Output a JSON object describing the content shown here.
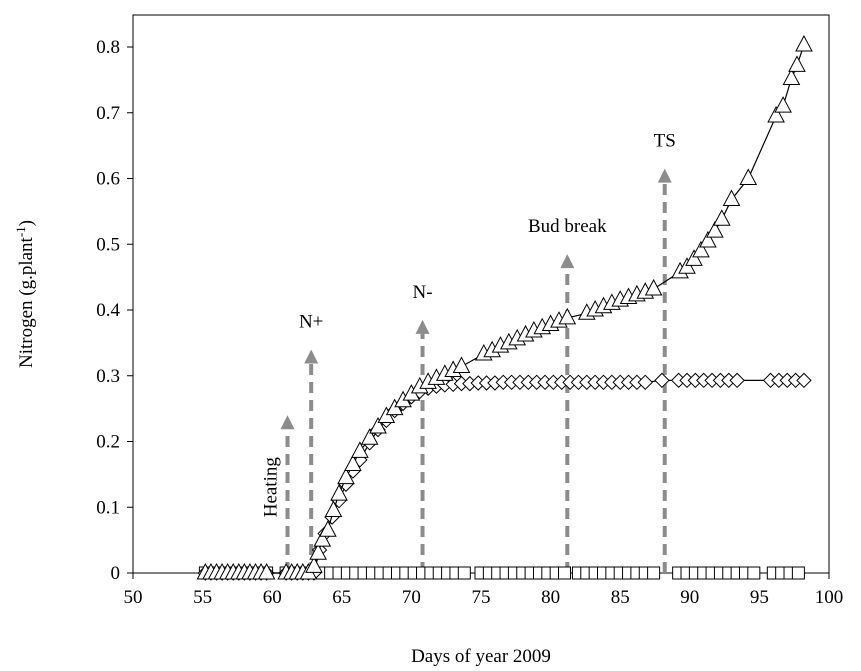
{
  "chart_data": {
    "type": "line",
    "title": "",
    "xlabel": "Days of year 2009",
    "ylabel": "Nitrogen (g.plant",
    "ylabel_superscript": "-1",
    "ylabel_close": ")",
    "xlim": [
      50,
      100
    ],
    "ylim": [
      0,
      0.85
    ],
    "xticks": [
      50,
      55,
      60,
      65,
      70,
      75,
      80,
      85,
      90,
      95,
      100
    ],
    "yticks": [
      0,
      0.1,
      0.2,
      0.3,
      0.4,
      0.5,
      0.6,
      0.7,
      0.8
    ],
    "ytick_labels": [
      "0",
      "0.1",
      "0.2",
      "0.3",
      "0.4",
      "0.5",
      "0.6",
      "0.7",
      "0.8"
    ],
    "grid": false,
    "legend": "none",
    "series": [
      {
        "marker": "triangle",
        "connected": true,
        "points": [
          [
            55.2,
            0
          ],
          [
            55.6,
            0
          ],
          [
            56.0,
            0
          ],
          [
            56.4,
            0
          ],
          [
            56.8,
            0
          ],
          [
            57.2,
            0
          ],
          [
            57.6,
            0
          ],
          [
            58.0,
            0
          ],
          [
            58.4,
            0
          ],
          [
            58.8,
            0
          ],
          [
            59.2,
            0
          ],
          [
            59.6,
            0
          ],
          [
            61.0,
            0
          ],
          [
            61.4,
            0
          ],
          [
            61.8,
            0
          ],
          [
            62.2,
            0
          ],
          [
            62.6,
            0
          ],
          [
            63.0,
            0.01
          ],
          [
            63.3,
            0.03
          ],
          [
            63.6,
            0.05
          ],
          [
            64.0,
            0.065
          ],
          [
            64.4,
            0.095
          ],
          [
            64.8,
            0.12
          ],
          [
            65.3,
            0.145
          ],
          [
            65.8,
            0.165
          ],
          [
            66.3,
            0.185
          ],
          [
            67.0,
            0.205
          ],
          [
            67.6,
            0.222
          ],
          [
            68.2,
            0.238
          ],
          [
            68.8,
            0.25
          ],
          [
            69.4,
            0.262
          ],
          [
            70.0,
            0.272
          ],
          [
            70.6,
            0.283
          ],
          [
            71.2,
            0.29
          ],
          [
            71.8,
            0.296
          ],
          [
            72.4,
            0.302
          ],
          [
            73.0,
            0.308
          ],
          [
            73.6,
            0.314
          ],
          [
            75.2,
            0.333
          ],
          [
            75.8,
            0.338
          ],
          [
            76.4,
            0.345
          ],
          [
            77.0,
            0.35
          ],
          [
            77.6,
            0.356
          ],
          [
            78.2,
            0.362
          ],
          [
            78.8,
            0.368
          ],
          [
            79.4,
            0.373
          ],
          [
            80.0,
            0.378
          ],
          [
            80.6,
            0.383
          ],
          [
            81.2,
            0.388
          ],
          [
            82.6,
            0.395
          ],
          [
            83.2,
            0.4
          ],
          [
            83.8,
            0.405
          ],
          [
            84.4,
            0.41
          ],
          [
            85.0,
            0.415
          ],
          [
            85.6,
            0.419
          ],
          [
            86.2,
            0.423
          ],
          [
            86.8,
            0.427
          ],
          [
            87.4,
            0.432
          ],
          [
            89.3,
            0.458
          ],
          [
            89.8,
            0.465
          ],
          [
            90.3,
            0.477
          ],
          [
            90.8,
            0.49
          ],
          [
            91.3,
            0.505
          ],
          [
            91.8,
            0.52
          ],
          [
            92.3,
            0.538
          ],
          [
            93.0,
            0.568
          ],
          [
            94.2,
            0.6
          ],
          [
            96.2,
            0.695
          ],
          [
            96.7,
            0.71
          ],
          [
            97.3,
            0.752
          ],
          [
            97.7,
            0.772
          ],
          [
            98.2,
            0.803
          ]
        ]
      },
      {
        "marker": "diamond",
        "connected": true,
        "points": [
          [
            55.2,
            0
          ],
          [
            55.6,
            0
          ],
          [
            56.0,
            0
          ],
          [
            56.4,
            0
          ],
          [
            56.8,
            0
          ],
          [
            57.2,
            0
          ],
          [
            57.6,
            0
          ],
          [
            58.0,
            0
          ],
          [
            58.4,
            0
          ],
          [
            58.8,
            0
          ],
          [
            59.2,
            0
          ],
          [
            59.6,
            0
          ],
          [
            61.0,
            0
          ],
          [
            61.4,
            0
          ],
          [
            61.8,
            0
          ],
          [
            62.2,
            0
          ],
          [
            62.6,
            0
          ],
          [
            63.0,
            0
          ],
          [
            63.4,
            0.035
          ],
          [
            63.8,
            0.06
          ],
          [
            64.3,
            0.085
          ],
          [
            64.8,
            0.11
          ],
          [
            65.3,
            0.135
          ],
          [
            65.8,
            0.155
          ],
          [
            66.3,
            0.172
          ],
          [
            67.0,
            0.198
          ],
          [
            67.6,
            0.218
          ],
          [
            68.2,
            0.232
          ],
          [
            68.8,
            0.247
          ],
          [
            69.4,
            0.258
          ],
          [
            70.0,
            0.268
          ],
          [
            70.6,
            0.276
          ],
          [
            71.2,
            0.281
          ],
          [
            71.8,
            0.284
          ],
          [
            72.4,
            0.286
          ],
          [
            73.0,
            0.287
          ],
          [
            73.6,
            0.288
          ],
          [
            74.2,
            0.288
          ],
          [
            74.8,
            0.289
          ],
          [
            75.4,
            0.289
          ],
          [
            76.0,
            0.289
          ],
          [
            76.6,
            0.29
          ],
          [
            77.2,
            0.29
          ],
          [
            77.8,
            0.29
          ],
          [
            78.4,
            0.29
          ],
          [
            79.0,
            0.29
          ],
          [
            79.6,
            0.29
          ],
          [
            80.2,
            0.29
          ],
          [
            80.8,
            0.29
          ],
          [
            81.4,
            0.29
          ],
          [
            82.0,
            0.29
          ],
          [
            82.6,
            0.29
          ],
          [
            83.2,
            0.29
          ],
          [
            83.8,
            0.29
          ],
          [
            84.4,
            0.29
          ],
          [
            85.0,
            0.29
          ],
          [
            85.6,
            0.29
          ],
          [
            86.2,
            0.29
          ],
          [
            86.8,
            0.29
          ],
          [
            88.0,
            0.293
          ],
          [
            89.2,
            0.293
          ],
          [
            89.8,
            0.293
          ],
          [
            90.4,
            0.293
          ],
          [
            91.0,
            0.293
          ],
          [
            91.6,
            0.293
          ],
          [
            92.2,
            0.293
          ],
          [
            92.8,
            0.293
          ],
          [
            93.4,
            0.293
          ],
          [
            95.8,
            0.293
          ],
          [
            96.4,
            0.293
          ],
          [
            97.0,
            0.293
          ],
          [
            97.6,
            0.293
          ],
          [
            98.2,
            0.293
          ]
        ]
      },
      {
        "marker": "square",
        "connected": false,
        "points": [
          [
            55.2,
            0
          ],
          [
            55.6,
            0
          ],
          [
            56.0,
            0
          ],
          [
            56.4,
            0
          ],
          [
            56.8,
            0
          ],
          [
            57.2,
            0
          ],
          [
            57.6,
            0
          ],
          [
            58.0,
            0
          ],
          [
            58.4,
            0
          ],
          [
            58.8,
            0
          ],
          [
            59.2,
            0
          ],
          [
            59.6,
            0
          ],
          [
            61.0,
            0
          ],
          [
            61.4,
            0
          ],
          [
            61.8,
            0
          ],
          [
            62.2,
            0
          ],
          [
            62.6,
            0
          ],
          [
            63.6,
            0
          ],
          [
            64.2,
            0
          ],
          [
            64.8,
            0
          ],
          [
            65.4,
            0
          ],
          [
            66.0,
            0
          ],
          [
            66.6,
            0
          ],
          [
            67.2,
            0
          ],
          [
            67.8,
            0
          ],
          [
            68.4,
            0
          ],
          [
            69.0,
            0
          ],
          [
            69.6,
            0
          ],
          [
            70.2,
            0
          ],
          [
            70.8,
            0
          ],
          [
            71.4,
            0
          ],
          [
            72.0,
            0
          ],
          [
            72.6,
            0
          ],
          [
            73.2,
            0
          ],
          [
            73.8,
            0
          ],
          [
            75.0,
            0
          ],
          [
            75.6,
            0
          ],
          [
            76.2,
            0
          ],
          [
            76.8,
            0
          ],
          [
            77.4,
            0
          ],
          [
            78.0,
            0
          ],
          [
            78.6,
            0
          ],
          [
            79.2,
            0
          ],
          [
            79.8,
            0
          ],
          [
            80.4,
            0
          ],
          [
            81.0,
            0
          ],
          [
            82.0,
            0
          ],
          [
            82.6,
            0
          ],
          [
            83.2,
            0
          ],
          [
            83.8,
            0
          ],
          [
            84.4,
            0
          ],
          [
            85.0,
            0
          ],
          [
            85.6,
            0
          ],
          [
            86.2,
            0
          ],
          [
            86.8,
            0
          ],
          [
            87.4,
            0
          ],
          [
            89.2,
            0
          ],
          [
            89.8,
            0
          ],
          [
            90.4,
            0
          ],
          [
            91.0,
            0
          ],
          [
            91.6,
            0
          ],
          [
            92.2,
            0
          ],
          [
            92.8,
            0
          ],
          [
            93.4,
            0
          ],
          [
            94.0,
            0
          ],
          [
            94.6,
            0
          ],
          [
            96.0,
            0
          ],
          [
            96.6,
            0
          ],
          [
            97.2,
            0
          ],
          [
            97.8,
            0
          ]
        ]
      }
    ],
    "annotations": [
      {
        "text": "Heating",
        "x": 61.1,
        "y_end": 0.24,
        "rotated": true
      },
      {
        "text": "N+",
        "x": 62.8,
        "y_end": 0.34,
        "rotated": false
      },
      {
        "text": "N-",
        "x": 70.8,
        "y_end": 0.385,
        "rotated": false
      },
      {
        "text": "Bud break",
        "x": 81.2,
        "y_end": 0.485,
        "rotated": false
      },
      {
        "text": "TS",
        "x": 88.2,
        "y_end": 0.615,
        "rotated": false
      }
    ],
    "arrow_color": "#8c8c8c"
  }
}
